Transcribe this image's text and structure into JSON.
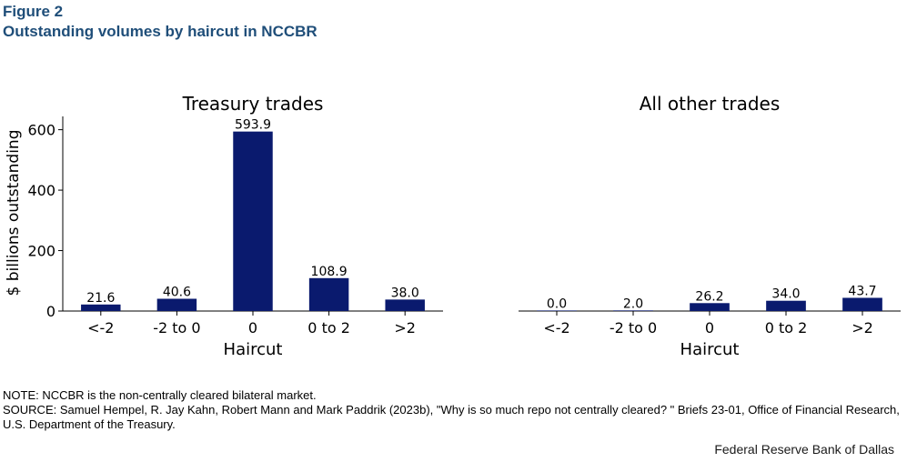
{
  "header": {
    "figure_label": "Figure 2",
    "title": "Outstanding volumes by haircut in NCCBR"
  },
  "chart_data": [
    {
      "type": "bar",
      "title": "Treasury trades",
      "categories": [
        "<-2",
        "-2 to 0",
        "0",
        "0 to 2",
        ">2"
      ],
      "values": [
        21.6,
        40.6,
        593.9,
        108.9,
        38.0
      ],
      "value_labels": [
        "21.6",
        "40.6",
        "593.9",
        "108.9",
        "38.0"
      ],
      "xlabel": "Haircut",
      "ylabel": "$ billions outstanding",
      "ylim": [
        0,
        650
      ],
      "yticks": [
        0,
        200,
        400,
        600
      ],
      "grid": false,
      "bar_color": "#0a1a6e"
    },
    {
      "type": "bar",
      "title": "All other trades",
      "categories": [
        "<-2",
        "-2 to 0",
        "0",
        "0 to 2",
        ">2"
      ],
      "values": [
        0.0,
        2.0,
        26.2,
        34.0,
        43.7
      ],
      "value_labels": [
        "0.0",
        "2.0",
        "26.2",
        "34.0",
        "43.7"
      ],
      "xlabel": "Haircut",
      "ylabel": "",
      "ylim": [
        0,
        650
      ],
      "yticks": [],
      "grid": false,
      "bar_color": "#0a1a6e"
    }
  ],
  "footer": {
    "note": "NOTE:  NCCBR is  the non-centrally cleared bilateral market.",
    "source": "SOURCE: Samuel Hempel, R. Jay Kahn, Robert Mann and Mark Paddrik (2023b), \"Why is so much repo not centrally cleared? \" Briefs 23-01, Office of Financial Research, U.S. Department of the Treasury.",
    "credit": "Federal Reserve Bank of Dallas"
  }
}
